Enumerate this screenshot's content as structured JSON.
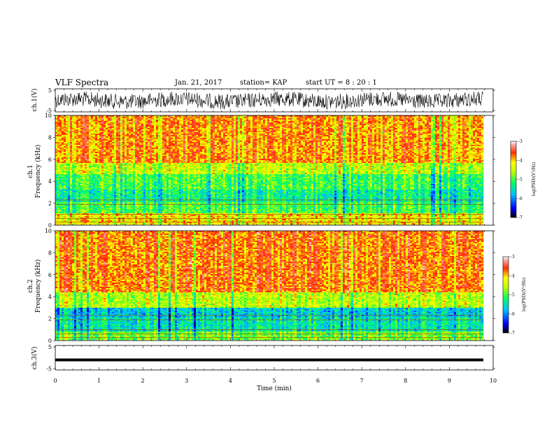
{
  "header": {
    "title": "VLF Spectra",
    "date": "Jan. 21, 2017",
    "station": "station= KAP",
    "start": "start  UT =  8 : 20 : 1"
  },
  "chart_data": {
    "type": "heatmap",
    "xlabel": "Time  (min)",
    "xlim": [
      0,
      10
    ],
    "xticks": [
      "0",
      "1",
      "2",
      "3",
      "4",
      "5",
      "6",
      "7",
      "8",
      "9",
      "10"
    ],
    "panels": [
      {
        "id": "ch1-waveform",
        "ylabel": "ch.1(V)",
        "ylim": [
          -5,
          5
        ],
        "yticks": [
          "5",
          "-5"
        ],
        "description": "waveform, noisy trace around 0 V"
      },
      {
        "id": "ch1-spectrogram",
        "ylabel_1": "ch.1",
        "ylabel_2": "Frequency  (kHz)",
        "ylim": [
          0,
          10
        ],
        "yticks": [
          "0",
          "2",
          "4",
          "6",
          "8",
          "10"
        ],
        "bands": [
          {
            "from": 0,
            "to": 1.0,
            "level": -4.2
          },
          {
            "from": 1.0,
            "to": 2.0,
            "level": -5.0
          },
          {
            "from": 2.0,
            "to": 3.2,
            "level": -5.3
          },
          {
            "from": 3.2,
            "to": 4.6,
            "level": -5.0
          },
          {
            "from": 4.6,
            "to": 5.6,
            "level": -4.5
          },
          {
            "from": 5.6,
            "to": 10.0,
            "level": -3.9
          }
        ],
        "colorbar": {
          "label": "log(PSD)(V²/Hz)",
          "ticks": [
            "-3",
            "-4",
            "-5",
            "-6",
            "-7"
          ],
          "range": [
            -7,
            -3
          ]
        }
      },
      {
        "id": "ch2-spectrogram",
        "ylabel_1": "ch.2",
        "ylabel_2": "Frequency  (kHz)",
        "ylim": [
          0,
          10
        ],
        "yticks": [
          "0",
          "2",
          "4",
          "6",
          "8",
          "10"
        ],
        "bands": [
          {
            "from": 0,
            "to": 0.8,
            "level": -4.8
          },
          {
            "from": 0.8,
            "to": 2.0,
            "level": -5.4
          },
          {
            "from": 2.0,
            "to": 3.0,
            "level": -5.6
          },
          {
            "from": 3.0,
            "to": 4.4,
            "level": -4.5
          },
          {
            "from": 4.4,
            "to": 10.0,
            "level": -3.8
          }
        ],
        "colorbar": {
          "label": "log(PSD)(V²/Hz)",
          "ticks": [
            "-3",
            "-4",
            "-5",
            "-6",
            "-7"
          ],
          "range": [
            -7,
            -3
          ]
        }
      },
      {
        "id": "ch3-waveform",
        "ylabel": "ch.3(V)",
        "ylim": [
          -5,
          5
        ],
        "yticks": [
          "5",
          "-5"
        ],
        "constant_value": -1.0
      }
    ],
    "colorscale": [
      "#000080",
      "#0000ff",
      "#00bfff",
      "#00ff80",
      "#80ff00",
      "#ffff00",
      "#ffa500",
      "#ff0000",
      "#ffffff"
    ]
  }
}
